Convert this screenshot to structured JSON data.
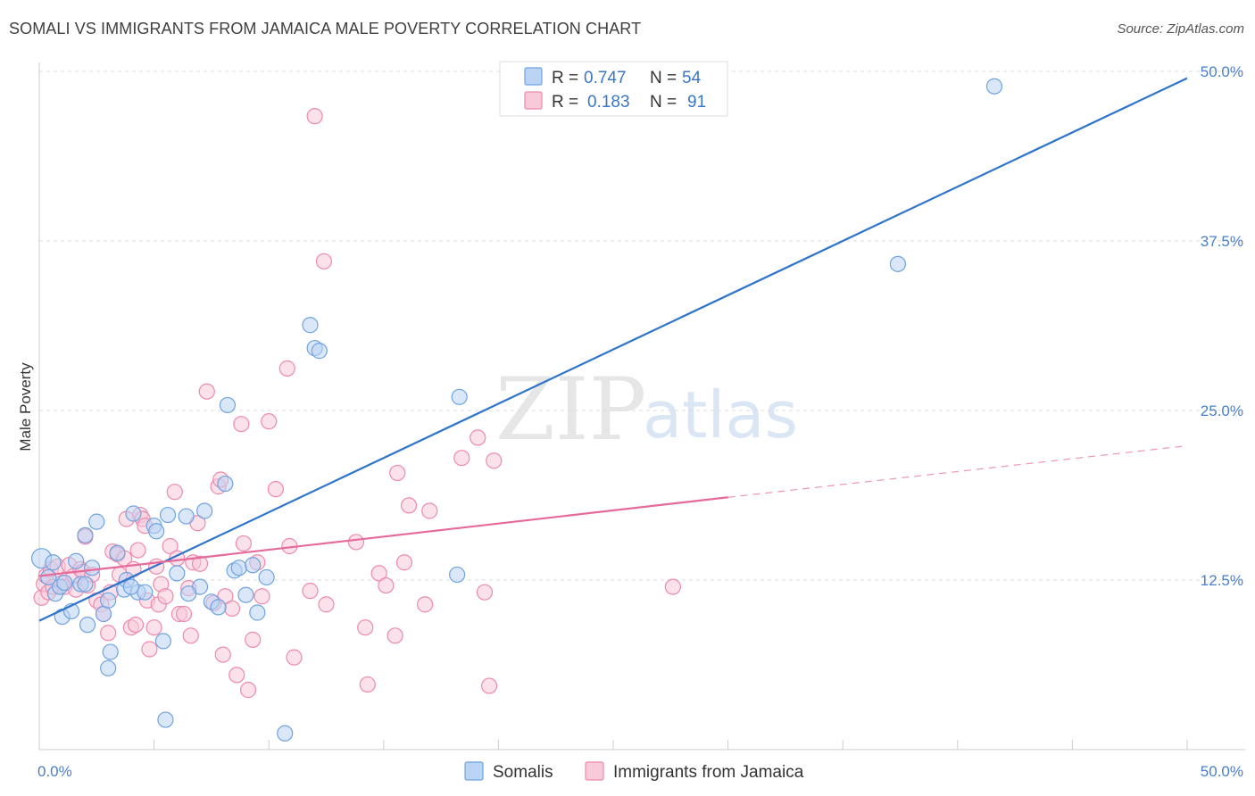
{
  "title": "SOMALI VS IMMIGRANTS FROM JAMAICA MALE POVERTY CORRELATION CHART",
  "source": "Source: ZipAtlas.com",
  "watermark": {
    "zip": "ZIP",
    "atlas": "atlas"
  },
  "colors": {
    "somali": "#6fa3e0",
    "somali_fill": "#bcd4f4",
    "jamaica": "#ee8aab",
    "jamaica_fill": "#f8c9d8",
    "somali_line": "#2f74cc",
    "jamaica_line": "#e5699a",
    "grid": "#dddddd",
    "axis_text": "#4a7fc8"
  },
  "legend": {
    "row1": {
      "r_label": "R =",
      "r_value": "0.747",
      "n_label": "N =",
      "n_value": "54"
    },
    "row2": {
      "r_label": "R =",
      "r_value": "0.183",
      "n_label": "N =",
      "n_value": "91"
    }
  },
  "chart_data": {
    "type": "scatter",
    "title": "SOMALI VS IMMIGRANTS FROM JAMAICA MALE POVERTY CORRELATION CHART",
    "xlabel": "",
    "ylabel": "Male Poverty",
    "xlim": [
      0,
      50
    ],
    "ylim": [
      0,
      50
    ],
    "x_tick_labels": [
      "0.0%",
      "50.0%"
    ],
    "y_ticks": [
      12.5,
      25.0,
      37.5,
      50.0
    ],
    "y_tick_labels": [
      "12.5%",
      "25.0%",
      "37.5%",
      "50.0%"
    ],
    "grid": true,
    "legend_position": "top-center",
    "series": [
      {
        "name": "Somalis",
        "trend": {
          "x": [
            0,
            50
          ],
          "y": [
            9.5,
            49.5
          ]
        },
        "points": [
          [
            0.1,
            14.1
          ],
          [
            0.4,
            12.7
          ],
          [
            0.6,
            13.8
          ],
          [
            0.7,
            11.5
          ],
          [
            0.9,
            12.0
          ],
          [
            1.0,
            9.8
          ],
          [
            1.1,
            12.3
          ],
          [
            1.4,
            10.2
          ],
          [
            1.6,
            13.9
          ],
          [
            1.8,
            12.2
          ],
          [
            2.0,
            15.8
          ],
          [
            2.1,
            9.2
          ],
          [
            2.3,
            13.4
          ],
          [
            2.5,
            16.8
          ],
          [
            2.8,
            10.0
          ],
          [
            3.0,
            11.0
          ],
          [
            3.1,
            7.2
          ],
          [
            3.4,
            14.5
          ],
          [
            3.7,
            11.8
          ],
          [
            3.8,
            12.5
          ],
          [
            4.1,
            17.4
          ],
          [
            4.3,
            11.6
          ],
          [
            4.6,
            11.6
          ],
          [
            5.0,
            16.5
          ],
          [
            5.1,
            16.1
          ],
          [
            5.4,
            8.0
          ],
          [
            5.5,
            2.2
          ],
          [
            5.6,
            17.3
          ],
          [
            6.0,
            13.0
          ],
          [
            6.4,
            17.2
          ],
          [
            7.0,
            12.0
          ],
          [
            7.2,
            17.6
          ],
          [
            7.5,
            10.9
          ],
          [
            7.8,
            10.5
          ],
          [
            8.1,
            19.6
          ],
          [
            8.2,
            25.4
          ],
          [
            8.5,
            13.2
          ],
          [
            8.7,
            13.4
          ],
          [
            9.0,
            11.4
          ],
          [
            9.3,
            13.6
          ],
          [
            9.5,
            10.1
          ],
          [
            9.9,
            12.7
          ],
          [
            10.7,
            1.2
          ],
          [
            11.8,
            31.3
          ],
          [
            12.0,
            29.6
          ],
          [
            12.2,
            29.4
          ],
          [
            18.2,
            12.9
          ],
          [
            18.3,
            26.0
          ],
          [
            37.4,
            35.8
          ],
          [
            41.6,
            48.9
          ],
          [
            3.0,
            6.0
          ],
          [
            4.0,
            12.0
          ],
          [
            2.0,
            12.2
          ],
          [
            6.5,
            11.5
          ]
        ]
      },
      {
        "name": "Immigrants from Jamaica",
        "trend": {
          "x": [
            0,
            30
          ],
          "y": [
            12.8,
            18.6
          ]
        },
        "trend_dashed": {
          "x": [
            30,
            50
          ],
          "y": [
            18.6,
            22.4
          ]
        },
        "points": [
          [
            0.1,
            11.2
          ],
          [
            0.2,
            12.2
          ],
          [
            0.3,
            12.8
          ],
          [
            0.4,
            11.6
          ],
          [
            0.5,
            13.3
          ],
          [
            0.6,
            12.0
          ],
          [
            0.8,
            13.5
          ],
          [
            1.0,
            12.3
          ],
          [
            1.1,
            12.0
          ],
          [
            1.3,
            13.6
          ],
          [
            1.5,
            12.8
          ],
          [
            1.6,
            11.8
          ],
          [
            1.8,
            13.3
          ],
          [
            1.9,
            13.1
          ],
          [
            2.0,
            15.7
          ],
          [
            2.1,
            12.1
          ],
          [
            2.3,
            12.9
          ],
          [
            2.5,
            11.0
          ],
          [
            2.7,
            10.7
          ],
          [
            2.8,
            10.0
          ],
          [
            3.0,
            8.6
          ],
          [
            3.1,
            11.6
          ],
          [
            3.2,
            14.6
          ],
          [
            3.4,
            14.4
          ],
          [
            3.5,
            12.9
          ],
          [
            3.7,
            14.1
          ],
          [
            3.8,
            17.0
          ],
          [
            4.0,
            9.0
          ],
          [
            4.1,
            13.3
          ],
          [
            4.2,
            9.2
          ],
          [
            4.3,
            14.7
          ],
          [
            4.4,
            17.3
          ],
          [
            4.5,
            17.0
          ],
          [
            4.6,
            16.5
          ],
          [
            4.7,
            11.0
          ],
          [
            4.8,
            7.4
          ],
          [
            5.0,
            9.0
          ],
          [
            5.1,
            13.5
          ],
          [
            5.2,
            10.7
          ],
          [
            5.3,
            12.2
          ],
          [
            5.5,
            11.3
          ],
          [
            5.7,
            15.0
          ],
          [
            5.9,
            19.0
          ],
          [
            6.0,
            14.1
          ],
          [
            6.1,
            10.0
          ],
          [
            6.3,
            10.0
          ],
          [
            6.5,
            11.9
          ],
          [
            6.6,
            8.4
          ],
          [
            6.7,
            13.8
          ],
          [
            6.9,
            16.7
          ],
          [
            7.0,
            13.7
          ],
          [
            7.3,
            26.4
          ],
          [
            7.6,
            10.8
          ],
          [
            7.8,
            19.4
          ],
          [
            7.9,
            19.9
          ],
          [
            8.0,
            7.0
          ],
          [
            8.1,
            11.3
          ],
          [
            8.4,
            10.4
          ],
          [
            8.6,
            5.5
          ],
          [
            8.8,
            24.0
          ],
          [
            8.9,
            15.2
          ],
          [
            9.1,
            4.4
          ],
          [
            9.3,
            8.1
          ],
          [
            9.5,
            13.8
          ],
          [
            9.7,
            11.3
          ],
          [
            10.0,
            24.2
          ],
          [
            10.3,
            19.2
          ],
          [
            10.8,
            28.1
          ],
          [
            10.9,
            15.0
          ],
          [
            11.1,
            6.8
          ],
          [
            11.8,
            11.7
          ],
          [
            12.0,
            46.7
          ],
          [
            12.4,
            36.0
          ],
          [
            12.5,
            10.7
          ],
          [
            13.8,
            15.3
          ],
          [
            14.2,
            9.0
          ],
          [
            14.3,
            4.8
          ],
          [
            14.8,
            13.0
          ],
          [
            15.1,
            12.1
          ],
          [
            15.5,
            8.4
          ],
          [
            15.6,
            20.4
          ],
          [
            15.9,
            13.8
          ],
          [
            16.1,
            18.0
          ],
          [
            16.8,
            10.7
          ],
          [
            17.0,
            17.6
          ],
          [
            18.4,
            21.5
          ],
          [
            19.1,
            23.0
          ],
          [
            19.4,
            11.6
          ],
          [
            19.6,
            4.7
          ],
          [
            19.8,
            21.3
          ],
          [
            27.6,
            12.0
          ]
        ]
      }
    ]
  },
  "bottom_legend": [
    {
      "label": "Somalis"
    },
    {
      "label": "Immigrants from Jamaica"
    }
  ]
}
